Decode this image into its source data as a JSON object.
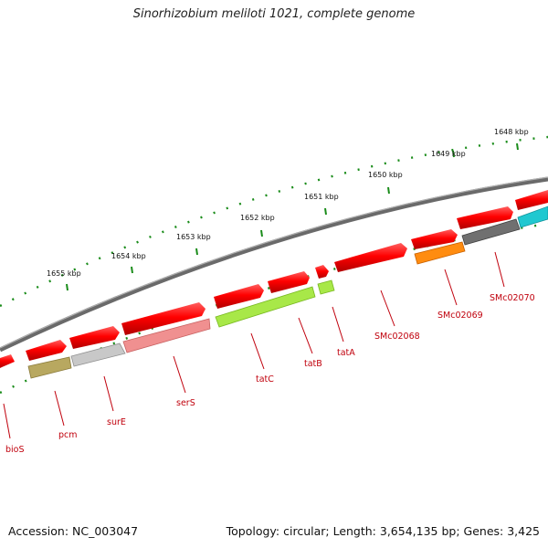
{
  "title": "Sinorhizobium meliloti 1021, complete genome",
  "footer": {
    "accession": "Accession: NC_003047",
    "topology": "Topology: circular; Length: 3,654,135 bp; Genes: 3,425"
  },
  "ticks": [
    {
      "label": "1648 kbp"
    },
    {
      "label": "1649 kbp"
    },
    {
      "label": "1650 kbp"
    },
    {
      "label": "1651 kbp"
    },
    {
      "label": "1652 kbp"
    },
    {
      "label": "1653 kbp"
    },
    {
      "label": "1654 kbp"
    },
    {
      "label": "1655 kbp"
    }
  ],
  "genes": [
    {
      "name": "bioS",
      "color": "#e8e8e8"
    },
    {
      "name": "pcm",
      "color": "#b8a860"
    },
    {
      "name": "surE",
      "color": "#c8c8c8"
    },
    {
      "name": "serS",
      "color": "#f09090"
    },
    {
      "name": "tatC",
      "color": "#a8e848"
    },
    {
      "name": "tatB",
      "color": "#a8e848"
    },
    {
      "name": "tatA",
      "color": "#a8e848"
    },
    {
      "name": "SMc02068",
      "color": "#ff2020"
    },
    {
      "name": "SMc02069",
      "color": "#ff8c10"
    },
    {
      "name": "SMc02070",
      "color": "#707070"
    }
  ],
  "colors": {
    "strand_forward": "#ff0000",
    "backbone": "#808080",
    "tick": "#1a8c1a",
    "label": "#c0000c"
  }
}
